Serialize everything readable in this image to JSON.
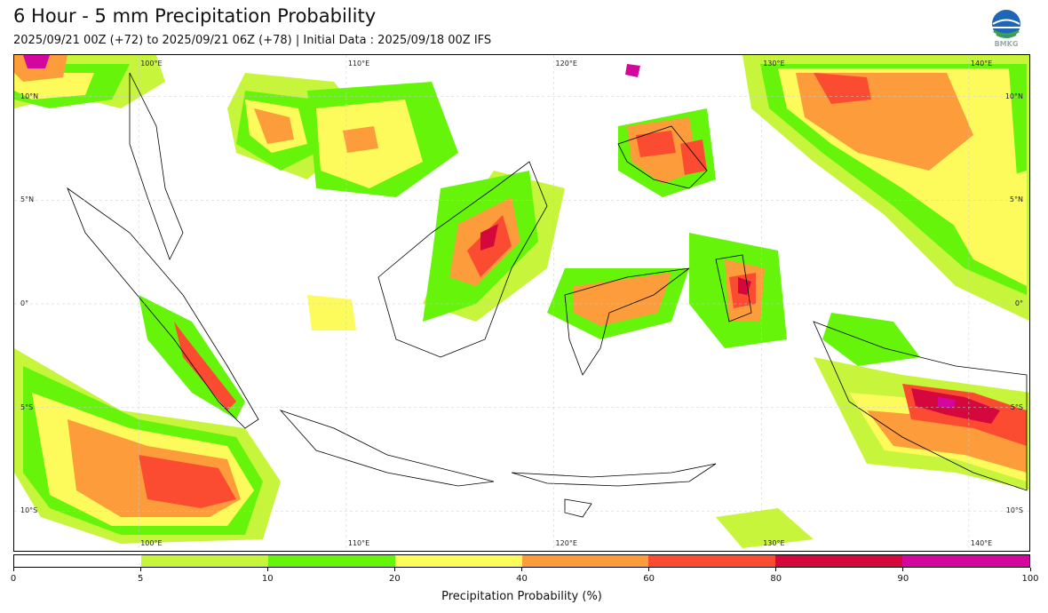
{
  "title": "6 Hour - 5 mm Precipitation Probability",
  "subtitle": "2025/09/21 00Z (+72) to 2025/09/21 06Z (+78) | Initial Data : 2025/09/18 00Z IFS",
  "logo": {
    "text": "BMKG",
    "icon": "bmkg-logo"
  },
  "map": {
    "extent": {
      "lon": [
        94,
        143
      ],
      "lat": [
        -12,
        12
      ]
    },
    "lon_ticks": [
      {
        "lon": 100,
        "label": "100°E"
      },
      {
        "lon": 110,
        "label": "110°E"
      },
      {
        "lon": 120,
        "label": "120°E"
      },
      {
        "lon": 130,
        "label": "130°E"
      },
      {
        "lon": 140,
        "label": "140°E"
      }
    ],
    "lat_ticks": [
      {
        "lat": 10,
        "label": "10°N"
      },
      {
        "lat": 5,
        "label": "5°N"
      },
      {
        "lat": 0,
        "label": "0°"
      },
      {
        "lat": -5,
        "label": "5°S"
      },
      {
        "lat": -10,
        "label": "10°S"
      }
    ],
    "grid": true
  },
  "colorbar": {
    "label": "Precipitation Probability (%)",
    "bounds": [
      0,
      5,
      10,
      20,
      40,
      60,
      80,
      90,
      100
    ],
    "tick_labels": [
      "0",
      "5",
      "10",
      "20",
      "40",
      "60",
      "80",
      "90",
      "100"
    ],
    "colors": [
      "#ffffff",
      "#c7f53b",
      "#66f50a",
      "#fdfb5c",
      "#fc9c3b",
      "#fb4b31",
      "#d4083c",
      "#d3079e"
    ]
  }
}
